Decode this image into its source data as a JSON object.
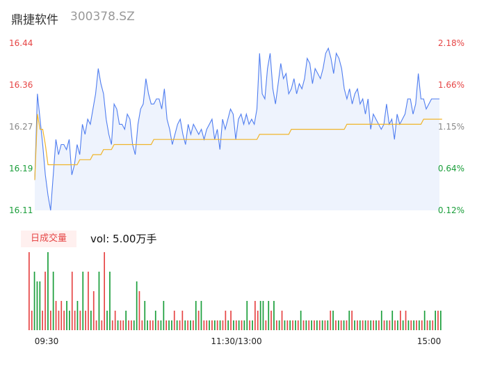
{
  "header": {
    "name": "鼎捷软件",
    "code": "300378.SZ"
  },
  "colors": {
    "up": "#e64545",
    "down": "#1a9e3a",
    "neutral": "#888888",
    "price_line": "#4f7df0",
    "avg_line": "#f0b429",
    "area_fill": "#eef3fd"
  },
  "volume_panel": {
    "tag": "日成交量",
    "vol_text": "vol: 5.00万手"
  },
  "chart_data": {
    "type": "line",
    "price_axis": {
      "labels": [
        "16.44",
        "16.36",
        "16.27",
        "16.19",
        "16.11"
      ],
      "ylim": [
        16.11,
        16.44
      ]
    },
    "pct_axis": {
      "labels": [
        "2.18%",
        "1.66%",
        "1.15%",
        "0.64%",
        "0.12%"
      ]
    },
    "x_ticks": [
      "09:30",
      "11:30/13:00",
      "15:00"
    ],
    "series": [
      {
        "name": "price",
        "values": [
          16.17,
          16.34,
          16.29,
          16.24,
          16.18,
          16.14,
          16.11,
          16.18,
          16.25,
          16.22,
          16.24,
          16.24,
          16.23,
          16.25,
          16.18,
          16.2,
          16.24,
          16.22,
          16.28,
          16.26,
          16.29,
          16.28,
          16.31,
          16.34,
          16.39,
          16.36,
          16.34,
          16.29,
          16.26,
          16.24,
          16.32,
          16.31,
          16.28,
          16.28,
          16.27,
          16.3,
          16.29,
          16.24,
          16.22,
          16.28,
          16.31,
          16.32,
          16.37,
          16.34,
          16.32,
          16.32,
          16.33,
          16.33,
          16.31,
          16.35,
          16.29,
          16.27,
          16.24,
          16.26,
          16.28,
          16.29,
          16.26,
          16.24,
          16.28,
          16.26,
          16.28,
          16.27,
          16.26,
          16.27,
          16.25,
          16.27,
          16.28,
          16.29,
          16.25,
          16.27,
          16.23,
          16.29,
          16.27,
          16.29,
          16.31,
          16.3,
          16.25,
          16.29,
          16.3,
          16.28,
          16.3,
          16.28,
          16.29,
          16.28,
          16.31,
          16.42,
          16.34,
          16.33,
          16.39,
          16.42,
          16.35,
          16.32,
          16.36,
          16.4,
          16.37,
          16.38,
          16.34,
          16.35,
          16.37,
          16.34,
          16.36,
          16.35,
          16.37,
          16.41,
          16.4,
          16.36,
          16.39,
          16.38,
          16.37,
          16.39,
          16.42,
          16.43,
          16.41,
          16.38,
          16.42,
          16.41,
          16.39,
          16.35,
          16.33,
          16.35,
          16.32,
          16.34,
          16.35,
          16.32,
          16.33,
          16.3,
          16.33,
          16.27,
          16.3,
          16.29,
          16.28,
          16.27,
          16.28,
          16.32,
          16.28,
          16.29,
          16.25,
          16.3,
          16.28,
          16.29,
          16.3,
          16.33,
          16.33,
          16.3,
          16.32,
          16.38,
          16.33,
          16.33,
          16.31,
          16.32,
          16.33,
          16.33,
          16.33,
          16.33
        ],
        "color": "#4f7df0"
      },
      {
        "name": "average",
        "values": [
          16.17,
          16.3,
          16.27,
          16.27,
          16.24,
          16.2,
          16.2,
          16.2,
          16.2,
          16.2,
          16.2,
          16.2,
          16.2,
          16.2,
          16.2,
          16.2,
          16.2,
          16.21,
          16.21,
          16.21,
          16.21,
          16.21,
          16.22,
          16.22,
          16.22,
          16.22,
          16.23,
          16.23,
          16.23,
          16.23,
          16.24,
          16.24,
          16.24,
          16.24,
          16.24,
          16.24,
          16.24,
          16.24,
          16.24,
          16.24,
          16.24,
          16.24,
          16.24,
          16.24,
          16.24,
          16.25,
          16.25,
          16.25,
          16.25,
          16.25,
          16.25,
          16.25,
          16.25,
          16.25,
          16.25,
          16.25,
          16.25,
          16.25,
          16.25,
          16.25,
          16.25,
          16.25,
          16.25,
          16.25,
          16.25,
          16.25,
          16.25,
          16.25,
          16.25,
          16.25,
          16.25,
          16.25,
          16.25,
          16.25,
          16.25,
          16.25,
          16.25,
          16.25,
          16.25,
          16.25,
          16.25,
          16.25,
          16.25,
          16.25,
          16.25,
          16.26,
          16.26,
          16.26,
          16.26,
          16.26,
          16.26,
          16.26,
          16.26,
          16.26,
          16.26,
          16.26,
          16.26,
          16.27,
          16.27,
          16.27,
          16.27,
          16.27,
          16.27,
          16.27,
          16.27,
          16.27,
          16.27,
          16.27,
          16.27,
          16.27,
          16.27,
          16.27,
          16.27,
          16.27,
          16.27,
          16.27,
          16.27,
          16.27,
          16.28,
          16.28,
          16.28,
          16.28,
          16.28,
          16.28,
          16.28,
          16.28,
          16.28,
          16.28,
          16.28,
          16.28,
          16.28,
          16.28,
          16.28,
          16.28,
          16.28,
          16.28,
          16.28,
          16.28,
          16.28,
          16.28,
          16.28,
          16.28,
          16.28,
          16.28,
          16.28,
          16.28,
          16.28,
          16.29,
          16.29,
          16.29,
          16.29,
          16.29,
          16.29,
          16.29,
          16.29
        ],
        "color": "#f0b429"
      }
    ],
    "volume": {
      "values": [
        8,
        2,
        6,
        5,
        5,
        2,
        6,
        8,
        2,
        6,
        3,
        2,
        3,
        2,
        3,
        2,
        6,
        2,
        3,
        2,
        6,
        2,
        6,
        2,
        4,
        1,
        6,
        1,
        8,
        2,
        6,
        1,
        2,
        1,
        1,
        1,
        2,
        1,
        1,
        1,
        5,
        4,
        1,
        3,
        1,
        1,
        1,
        2,
        1,
        1,
        3,
        1,
        1,
        1,
        2,
        1,
        1,
        2,
        1,
        1,
        1,
        1,
        3,
        2,
        3,
        1,
        1,
        1,
        1,
        1,
        1,
        1,
        1,
        2,
        1,
        2,
        1,
        1,
        1,
        1,
        1,
        3,
        1,
        1,
        3,
        2,
        3,
        3,
        1,
        3,
        2,
        3,
        1,
        1,
        2,
        1,
        1,
        1,
        1,
        1,
        1,
        2,
        1,
        1,
        1,
        1,
        1,
        1,
        1,
        1,
        1,
        1,
        2,
        2,
        1,
        1,
        1,
        1,
        1,
        2,
        2,
        1,
        1,
        1,
        1,
        1,
        1,
        1,
        1,
        1,
        1,
        2,
        1,
        1,
        1,
        2,
        1,
        1,
        2,
        1,
        2,
        1,
        1,
        1,
        1,
        1,
        1,
        2,
        1,
        1,
        1,
        2,
        2,
        2
      ],
      "colors": [
        "up",
        "up",
        "down",
        "down",
        "down",
        "up",
        "up",
        "down",
        "up",
        "down",
        "up",
        "up",
        "up",
        "up",
        "down",
        "down",
        "up",
        "up",
        "down",
        "up",
        "down",
        "up",
        "up",
        "down",
        "up",
        "up",
        "down",
        "up",
        "up",
        "down",
        "down",
        "up",
        "up",
        "down",
        "up",
        "up",
        "down",
        "up",
        "up",
        "down",
        "down",
        "up",
        "up",
        "down",
        "down",
        "up",
        "up",
        "down",
        "up",
        "down",
        "down",
        "up",
        "down",
        "down",
        "up",
        "down",
        "up",
        "up",
        "down",
        "up",
        "down",
        "up",
        "down",
        "up",
        "down",
        "up",
        "up",
        "down",
        "up",
        "down",
        "up",
        "down",
        "up",
        "up",
        "down",
        "up",
        "down",
        "up",
        "down",
        "up",
        "down",
        "down",
        "up",
        "down",
        "up",
        "up",
        "down",
        "down",
        "up",
        "down",
        "up",
        "down",
        "up",
        "down",
        "up",
        "down",
        "up",
        "down",
        "up",
        "down",
        "up",
        "down",
        "up",
        "down",
        "up",
        "down",
        "up",
        "down",
        "up",
        "down",
        "up",
        "down",
        "up",
        "down",
        "up",
        "down",
        "up",
        "down",
        "up",
        "down",
        "up",
        "down",
        "up",
        "down",
        "up",
        "down",
        "up",
        "down",
        "up",
        "down",
        "up",
        "down",
        "up",
        "down",
        "up",
        "down",
        "up",
        "down",
        "up",
        "down",
        "up",
        "down",
        "up",
        "down",
        "up",
        "down",
        "up",
        "down",
        "up",
        "down",
        "up",
        "down",
        "up",
        "down",
        "up"
      ]
    }
  }
}
